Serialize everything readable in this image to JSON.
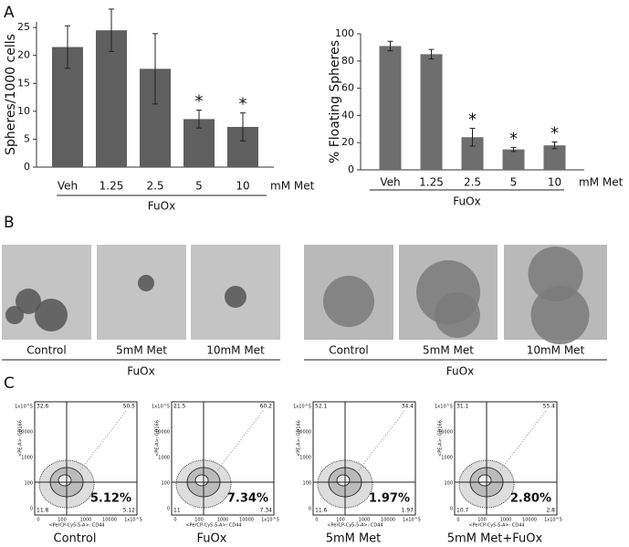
{
  "panel_labels": [
    "A",
    "B",
    "C"
  ],
  "chart_data": [
    {
      "type": "bar",
      "y_label": "Spheres/1000 cells",
      "categories": [
        "Veh",
        "1.25",
        "2.5",
        "5",
        "10"
      ],
      "values": [
        21.5,
        24.5,
        17.6,
        8.6,
        7.2
      ],
      "errors": [
        3.8,
        3.8,
        6.3,
        1.6,
        2.5
      ],
      "color": "#5f5f5f",
      "ylim": [
        0,
        26
      ],
      "yticks": [
        0,
        5,
        10,
        15,
        20,
        25
      ],
      "unit_label": "mM Met",
      "group_label": "FuOx",
      "annotations": [
        {
          "text": "*",
          "category": "5"
        },
        {
          "text": "*",
          "category": "10"
        }
      ]
    },
    {
      "type": "bar",
      "y_label": "% Floating Spheres",
      "categories": [
        "Veh",
        "1.25",
        "2.5",
        "5",
        "10"
      ],
      "values": [
        91,
        85,
        24,
        15,
        18
      ],
      "errors": [
        3.5,
        3.5,
        6.5,
        1.5,
        2.5
      ],
      "color": "#6e6e6e",
      "ylim": [
        0,
        100
      ],
      "yticks": [
        0,
        20,
        40,
        60,
        80,
        100
      ],
      "unit_label": "mM Met",
      "group_label": "FuOx",
      "annotations": [
        {
          "text": "*",
          "category": "2.5"
        },
        {
          "text": "*",
          "category": "5"
        },
        {
          "text": "*",
          "category": "10"
        }
      ]
    }
  ],
  "micrographs": [
    {
      "captions": [
        "Control",
        "5mM Met",
        "10mM Met"
      ],
      "group_label": "FuOx"
    },
    {
      "captions": [
        "Control",
        "5mM Met",
        "10mM Met"
      ],
      "group_label": "FuOx"
    }
  ],
  "flow_axis_ticks": {
    "x": [
      "0",
      "100",
      "1000",
      "10000",
      "1x10^5"
    ],
    "y": [
      "1x10^5",
      "10000",
      "1000",
      "100",
      "0"
    ]
  },
  "flow_plots": [
    {
      "caption": "Control",
      "quadrants": [
        "32.6",
        "50.5",
        "11.8",
        "5.12"
      ],
      "highlight": "5.12%",
      "x_label": "<PerCP-Cy5-5-A>: CD44",
      "y_label": "<PE-A>: CD166"
    },
    {
      "caption": "FuOx",
      "quadrants": [
        "21.5",
        "60.2",
        "11",
        "7.34"
      ],
      "highlight": "7.34%",
      "x_label": "<PerCP-Cy5-5-A>: CD44",
      "y_label": "<PE-A>: CD166"
    },
    {
      "caption": "5mM Met",
      "quadrants": [
        "52.1",
        "34.4",
        "11.6",
        "1.97"
      ],
      "highlight": "1.97%",
      "x_label": "<PerCP-Cy5-5-A>: CD44",
      "y_label": "<PE-A>: CD166"
    },
    {
      "caption": "5mM Met+FuOx",
      "quadrants": [
        "31.1",
        "55.4",
        "10.7",
        "2.8"
      ],
      "highlight": "2.80%",
      "x_label": "<PerCP-Cy5-5-A>: CD44",
      "y_label": "<PE-A>: CD166"
    }
  ]
}
